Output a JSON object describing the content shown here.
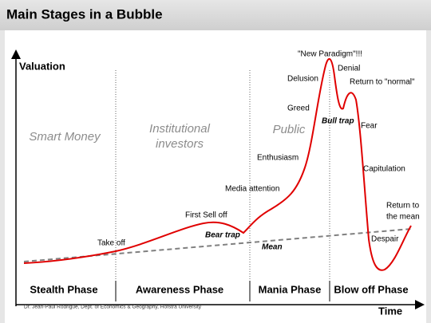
{
  "header": {
    "title": "Main Stages in a Bubble"
  },
  "axes": {
    "y_label": "Valuation",
    "x_label": "Time"
  },
  "phases": [
    "Stealth Phase",
    "Awareness Phase",
    "Mania Phase",
    "Blow off Phase"
  ],
  "groups": [
    [
      "Smart Money"
    ],
    [
      "Institutional",
      "investors"
    ],
    [
      "Public"
    ]
  ],
  "annotations": [
    "Take off",
    "First Sell off",
    "Bear trap",
    "Mean",
    "Media attention",
    "Enthusiasm",
    "Greed",
    "Delusion",
    "\"New Paradigm\"!!!",
    "Denial",
    "Return to \"normal\"",
    "Bull trap",
    "Fear",
    "Capitulation",
    "Return to",
    "the mean",
    "Despair"
  ],
  "credit": "Dr. Jean-Paul Rodrigue, Dept. of Economics & Geography, Hofstra University"
}
